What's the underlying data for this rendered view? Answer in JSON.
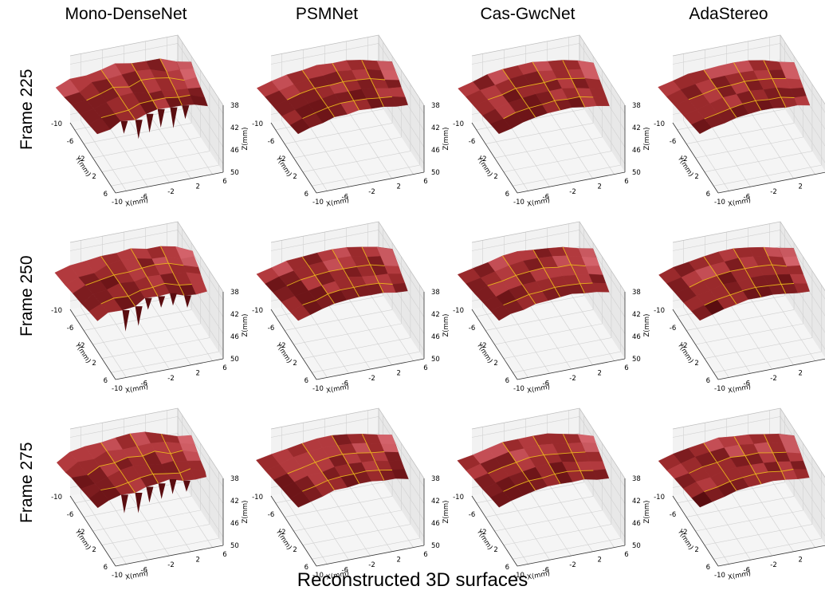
{
  "caption": "Reconstructed 3D surfaces",
  "columns": [
    "Mono-DenseNet",
    "PSMNet",
    "Cas-GwcNet",
    "AdaStereo"
  ],
  "rows": [
    "Frame 225",
    "Frame 250",
    "Frame 275"
  ],
  "colors": {
    "surface_dark": "#5a0d10",
    "surface_mid": "#9a2a2c",
    "surface_light": "#d86a72",
    "grid_lines": "#f2c21a",
    "pane": "#f2f2f2",
    "gridline": "#d0d0d0"
  },
  "chart_data": {
    "type": "surface",
    "axes": {
      "x": {
        "label": "X(mm)",
        "ticks": [
          -10,
          -6,
          -2,
          2,
          6
        ]
      },
      "y": {
        "label": "Y(mm)",
        "ticks": [
          -10,
          -6,
          -2,
          2,
          6
        ]
      },
      "z": {
        "label": "Z(mm)",
        "ticks": [
          38,
          42,
          46,
          50
        ]
      }
    },
    "grid": true
  }
}
